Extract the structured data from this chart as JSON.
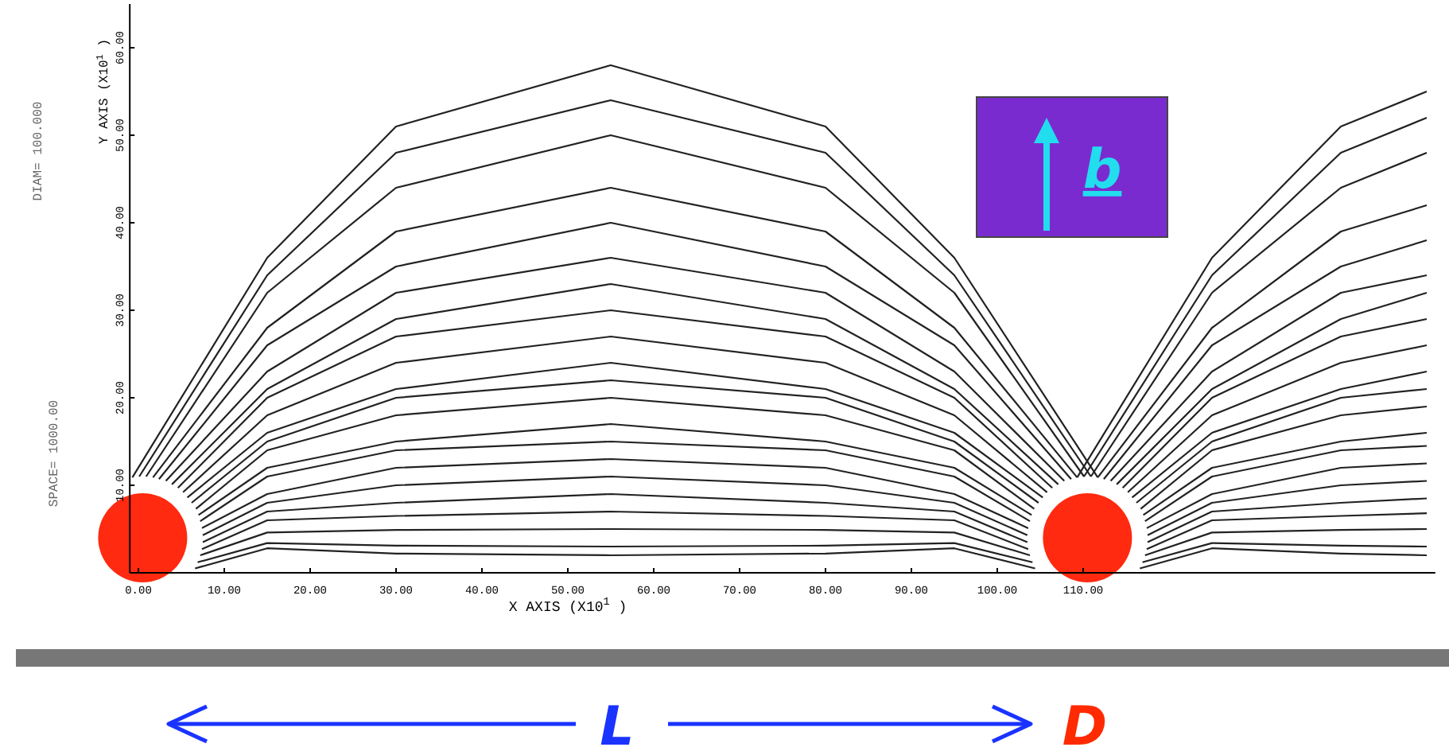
{
  "chart_data": {
    "type": "line",
    "xlabel": "X AXIS  (X10$^{1}$ )",
    "ylabel": "Y AXIS  (X10$^{1}$ )",
    "xlim": [
      -1,
      151
    ],
    "ylim": [
      0,
      65
    ],
    "xticks": [
      {
        "value": 0,
        "label": "0.00"
      },
      {
        "value": 10,
        "label": "10.00"
      },
      {
        "value": 20,
        "label": "20.00"
      },
      {
        "value": 30,
        "label": "30.00"
      },
      {
        "value": 40,
        "label": "40.00"
      },
      {
        "value": 50,
        "label": "50.00"
      },
      {
        "value": 60,
        "label": "60.00"
      },
      {
        "value": 70,
        "label": "70.00"
      },
      {
        "value": 80,
        "label": "80.00"
      },
      {
        "value": 90,
        "label": "90.00"
      },
      {
        "value": 100,
        "label": "100.00"
      },
      {
        "value": 110,
        "label": "110.00"
      }
    ],
    "yticks": [
      {
        "value": 10,
        "label": "10.00"
      },
      {
        "value": 20,
        "label": "20.00"
      },
      {
        "value": 30,
        "label": "30.00"
      },
      {
        "value": 40,
        "label": "40.00"
      },
      {
        "value": 50,
        "label": "50.00"
      },
      {
        "value": 60,
        "label": "60.00"
      }
    ],
    "series": [
      {
        "color": "#222222",
        "x": [
          -0.7,
          15,
          30,
          55,
          80,
          95,
          111.7
        ],
        "values": [
          10.9,
          36,
          51,
          58,
          51,
          36,
          10.9
        ]
      },
      {
        "color": "#222222",
        "x": [
          0.1,
          15,
          30,
          55,
          80,
          95,
          110.9
        ],
        "values": [
          11,
          34,
          48,
          54,
          48,
          34,
          11
        ]
      },
      {
        "color": "#222222",
        "x": [
          0.9,
          15,
          30,
          55,
          80,
          95,
          110.1
        ],
        "values": [
          11,
          32,
          44,
          50,
          44,
          32,
          11
        ]
      },
      {
        "color": "#222222",
        "x": [
          1.7,
          15,
          30,
          55,
          80,
          95,
          109.3
        ],
        "values": [
          10.9,
          28,
          39,
          44,
          39,
          28,
          10.9
        ]
      },
      {
        "color": "#222222",
        "x": [
          2.4,
          15,
          30,
          55,
          80,
          95,
          108.6
        ],
        "values": [
          10.7,
          26,
          35,
          40,
          35,
          26,
          10.7
        ]
      },
      {
        "color": "#222222",
        "x": [
          3.2,
          15,
          30,
          55,
          80,
          95,
          107.8
        ],
        "values": [
          10.5,
          23,
          32,
          36,
          32,
          23,
          10.5
        ]
      },
      {
        "color": "#222222",
        "x": [
          3.9,
          15,
          30,
          55,
          80,
          95,
          107.1
        ],
        "values": [
          10.1,
          21,
          29,
          33,
          29,
          21,
          10.1
        ]
      },
      {
        "color": "#222222",
        "x": [
          4.6,
          15,
          30,
          55,
          80,
          95,
          106.4
        ],
        "values": [
          9.7,
          20,
          27,
          30,
          27,
          20,
          9.7
        ]
      },
      {
        "color": "#222222",
        "x": [
          5.2,
          15,
          30,
          55,
          80,
          95,
          105.8
        ],
        "values": [
          9.2,
          18,
          24,
          27,
          24,
          18,
          9.2
        ]
      },
      {
        "color": "#222222",
        "x": [
          5.7,
          15,
          30,
          55,
          80,
          95,
          105.3
        ],
        "values": [
          8.6,
          16,
          21,
          24,
          21,
          16,
          8.6
        ]
      },
      {
        "color": "#222222",
        "x": [
          6.2,
          15,
          30,
          55,
          80,
          95,
          104.8
        ],
        "values": [
          8,
          15,
          20,
          22,
          20,
          15,
          8
        ]
      },
      {
        "color": "#222222",
        "x": [
          6.7,
          15,
          30,
          55,
          80,
          95,
          104.3
        ],
        "values": [
          7.3,
          14,
          18,
          20,
          18,
          14,
          7.3
        ]
      },
      {
        "color": "#222222",
        "x": [
          7,
          15,
          30,
          55,
          80,
          95,
          104
        ],
        "values": [
          6.6,
          12,
          15,
          17,
          15,
          12,
          6.6
        ]
      },
      {
        "color": "#222222",
        "x": [
          7.2,
          15,
          30,
          55,
          80,
          95,
          103.8
        ],
        "values": [
          5.9,
          11,
          14,
          15,
          14,
          11,
          5.9
        ]
      },
      {
        "color": "#222222",
        "x": [
          7.4,
          15,
          30,
          55,
          80,
          95,
          103.6
        ],
        "values": [
          5.1,
          9,
          12,
          13,
          12,
          9,
          5.1
        ]
      },
      {
        "color": "#222222",
        "x": [
          7.5,
          15,
          30,
          55,
          80,
          95,
          103.5
        ],
        "values": [
          4.3,
          8,
          10,
          11,
          10,
          8,
          4.3
        ]
      },
      {
        "color": "#222222",
        "x": [
          7.5,
          15,
          30,
          55,
          80,
          95,
          103.5
        ],
        "values": [
          3.5,
          7,
          8,
          9,
          8,
          7,
          3.5
        ]
      },
      {
        "color": "#222222",
        "x": [
          7.4,
          15,
          30,
          55,
          80,
          95,
          103.6
        ],
        "values": [
          2.7,
          6,
          6.5,
          7,
          6.5,
          6,
          2.7
        ]
      },
      {
        "color": "#222222",
        "x": [
          7.2,
          15,
          30,
          55,
          80,
          95,
          103.8
        ],
        "values": [
          2,
          4.6,
          4.9,
          5,
          4.9,
          4.6,
          2
        ]
      },
      {
        "color": "#222222",
        "x": [
          6.9,
          15,
          30,
          55,
          80,
          95,
          104.1
        ],
        "values": [
          1.2,
          3.4,
          3.1,
          3,
          3.1,
          3.4,
          1.2
        ]
      },
      {
        "color": "#222222",
        "x": [
          6.6,
          15,
          30,
          55,
          80,
          95,
          104.4
        ],
        "values": [
          0.5,
          2.8,
          2.2,
          2,
          2.2,
          2.8,
          0.5
        ]
      },
      {
        "color": "#222222",
        "x": [
          109.3,
          125,
          140,
          150
        ],
        "values": [
          10.9,
          36,
          51,
          55
        ]
      },
      {
        "color": "#222222",
        "x": [
          110.1,
          125,
          140,
          150
        ],
        "values": [
          11,
          34,
          48,
          52
        ]
      },
      {
        "color": "#222222",
        "x": [
          110.9,
          125,
          140,
          150
        ],
        "values": [
          11,
          32,
          44,
          48
        ]
      },
      {
        "color": "#222222",
        "x": [
          111.7,
          125,
          140,
          150
        ],
        "values": [
          10.9,
          28,
          39,
          42
        ]
      },
      {
        "color": "#222222",
        "x": [
          112.4,
          125,
          140,
          150
        ],
        "values": [
          10.7,
          26,
          35,
          38
        ]
      },
      {
        "color": "#222222",
        "x": [
          113.2,
          125,
          140,
          150
        ],
        "values": [
          10.5,
          23,
          32,
          34
        ]
      },
      {
        "color": "#222222",
        "x": [
          113.9,
          125,
          140,
          150
        ],
        "values": [
          10.1,
          21,
          29,
          32
        ]
      },
      {
        "color": "#222222",
        "x": [
          114.6,
          125,
          140,
          150
        ],
        "values": [
          9.7,
          20,
          27,
          29
        ]
      },
      {
        "color": "#222222",
        "x": [
          115.2,
          125,
          140,
          150
        ],
        "values": [
          9.2,
          18,
          24,
          26
        ]
      },
      {
        "color": "#222222",
        "x": [
          115.7,
          125,
          140,
          150
        ],
        "values": [
          8.6,
          16,
          21,
          23
        ]
      },
      {
        "color": "#222222",
        "x": [
          116.2,
          125,
          140,
          150
        ],
        "values": [
          8,
          15,
          20,
          21
        ]
      },
      {
        "color": "#222222",
        "x": [
          116.7,
          125,
          140,
          150
        ],
        "values": [
          7.3,
          14,
          18,
          19
        ]
      },
      {
        "color": "#222222",
        "x": [
          117,
          125,
          140,
          150
        ],
        "values": [
          6.6,
          12,
          15,
          16
        ]
      },
      {
        "color": "#222222",
        "x": [
          117.2,
          125,
          140,
          150
        ],
        "values": [
          5.9,
          11,
          14,
          14.5
        ]
      },
      {
        "color": "#222222",
        "x": [
          117.4,
          125,
          140,
          150
        ],
        "values": [
          5.1,
          9,
          12,
          12.5
        ]
      },
      {
        "color": "#222222",
        "x": [
          117.5,
          125,
          140,
          150
        ],
        "values": [
          4.3,
          8,
          10,
          10.5
        ]
      },
      {
        "color": "#222222",
        "x": [
          117.5,
          125,
          140,
          150
        ],
        "values": [
          3.5,
          7,
          8,
          8.5
        ]
      },
      {
        "color": "#222222",
        "x": [
          117.4,
          125,
          140,
          150
        ],
        "values": [
          2.7,
          6,
          6.5,
          6.8
        ]
      },
      {
        "color": "#222222",
        "x": [
          117.2,
          125,
          140,
          150
        ],
        "values": [
          2,
          4.6,
          4.9,
          5
        ]
      },
      {
        "color": "#222222",
        "x": [
          116.9,
          125,
          140,
          150
        ],
        "values": [
          1.2,
          3.4,
          3.1,
          3
        ]
      },
      {
        "color": "#222222",
        "x": [
          116.6,
          125,
          140,
          150
        ],
        "values": [
          0.5,
          2.8,
          2.2,
          2
        ]
      }
    ],
    "annotations": [
      "DIAM= 100.000",
      "SPACE= 1000.00",
      "b",
      "L",
      "D"
    ]
  }
}
